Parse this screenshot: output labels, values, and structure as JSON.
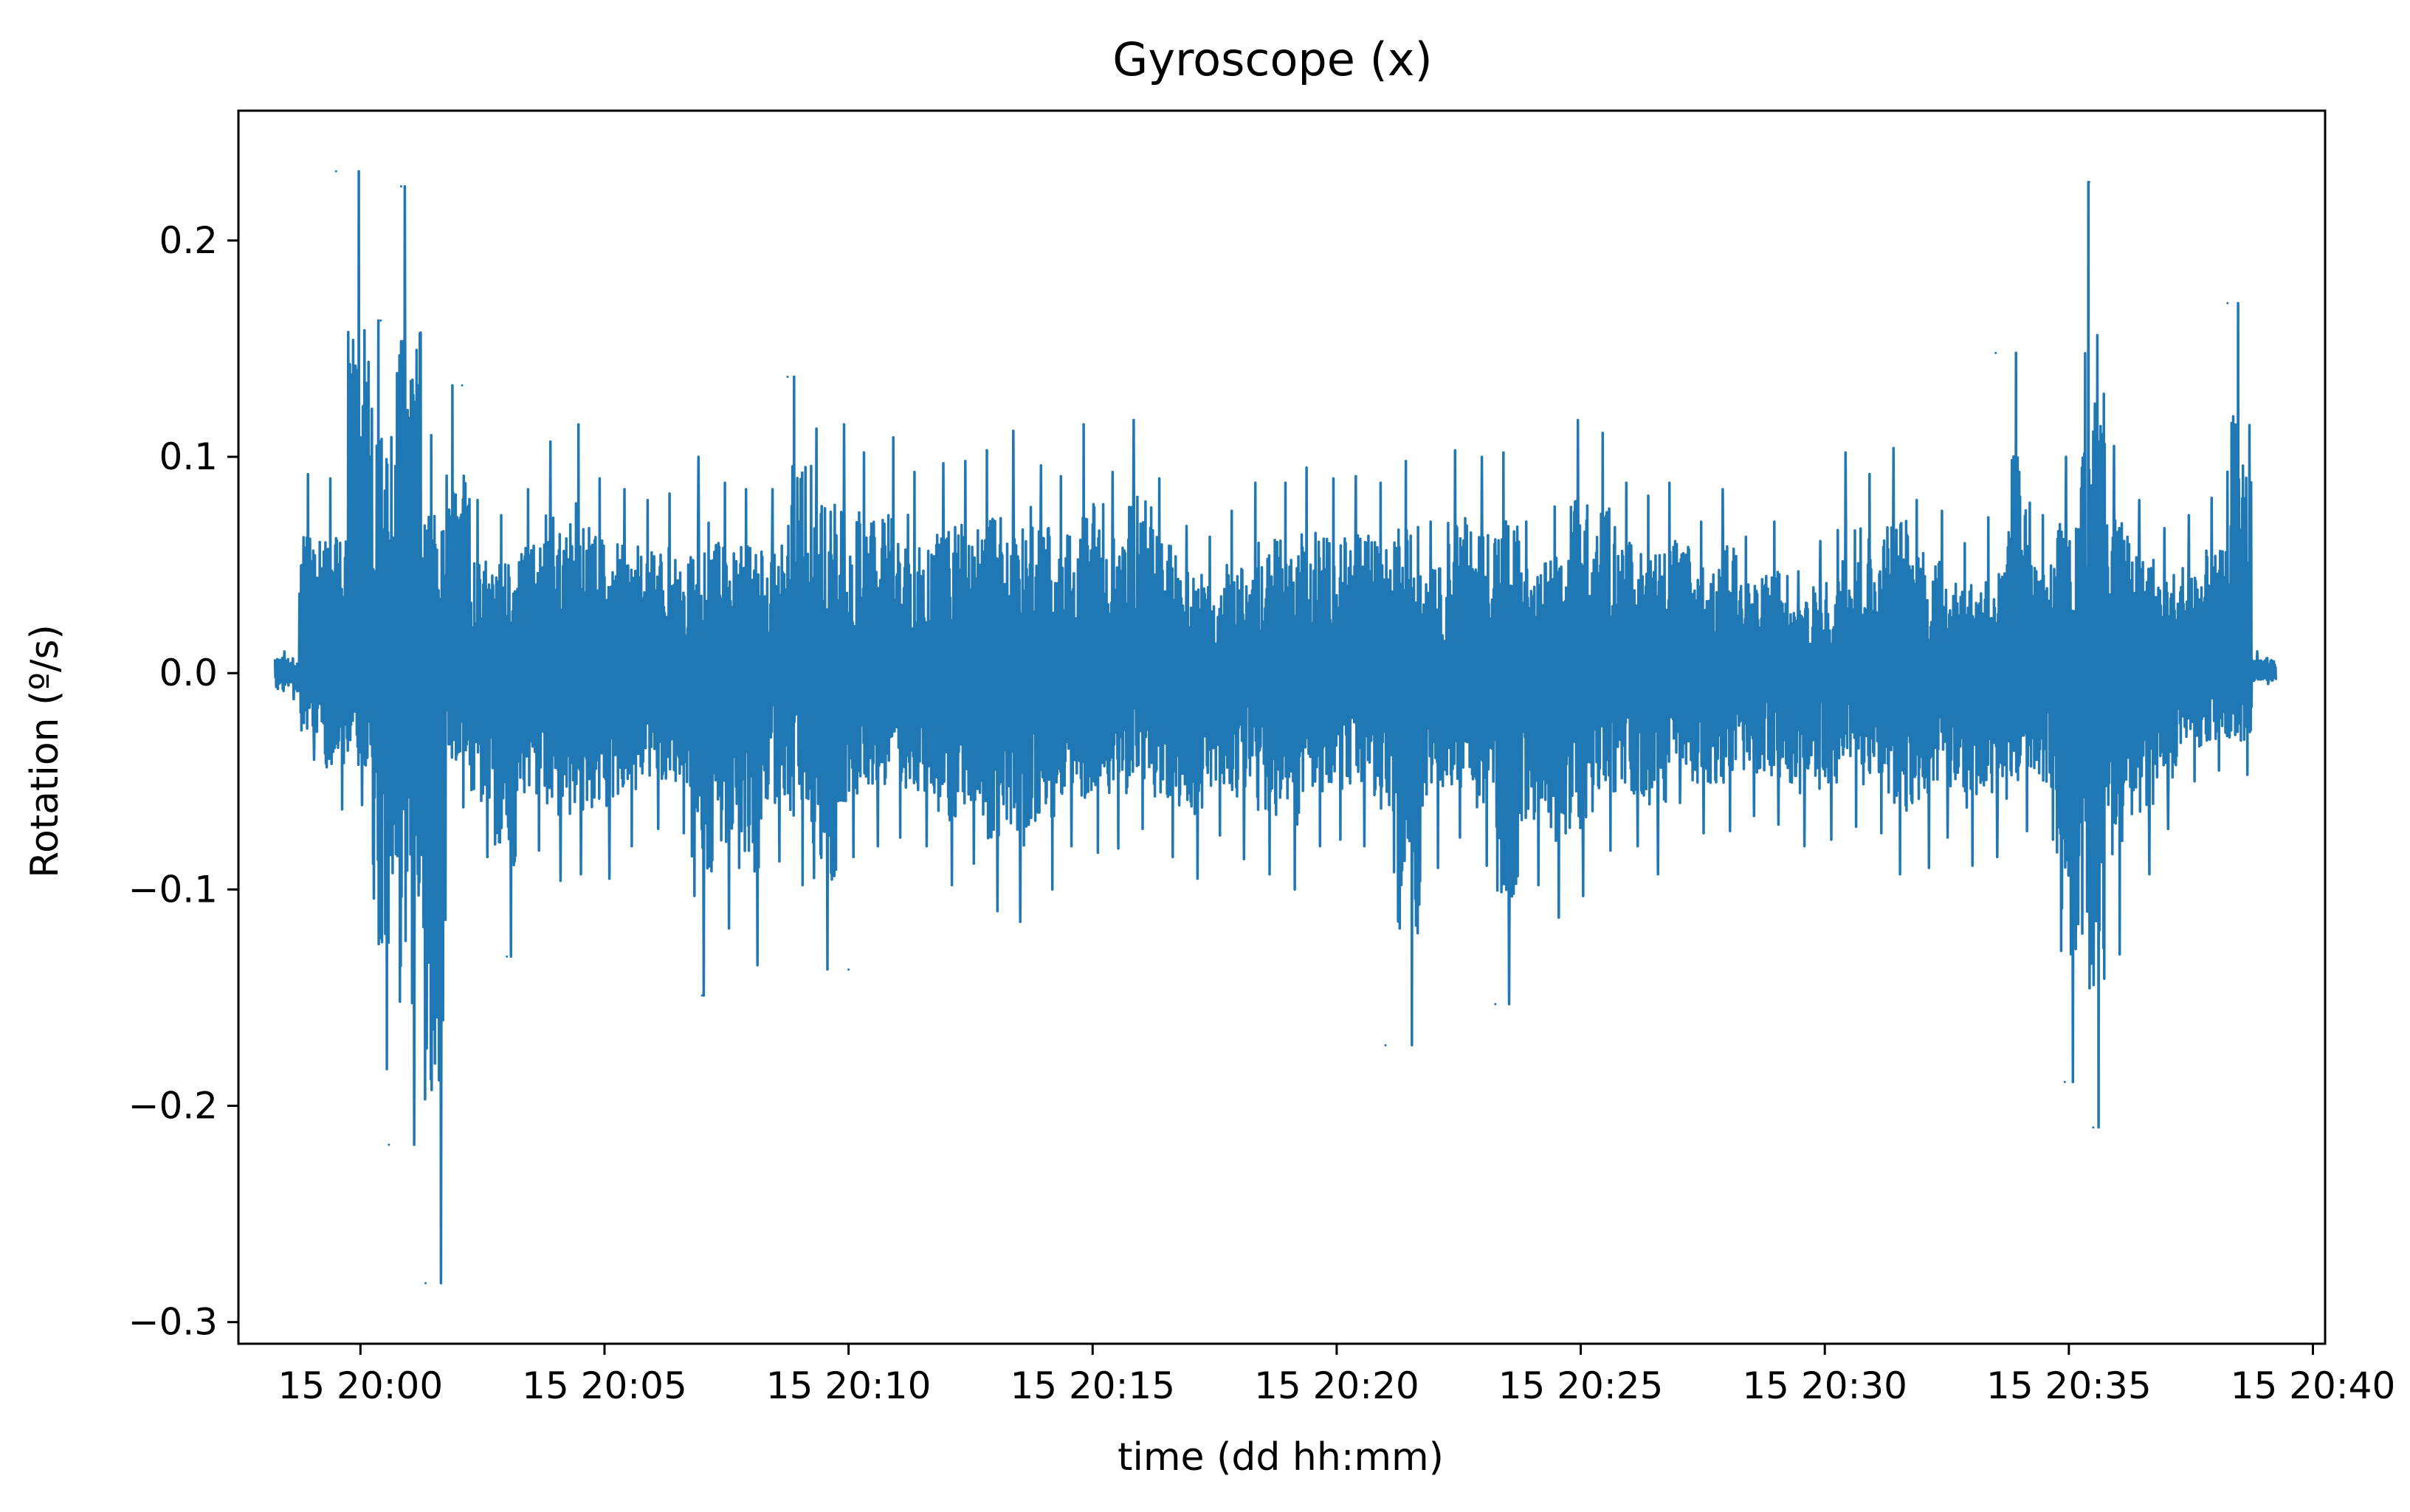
{
  "chart_data": {
    "type": "line",
    "title": "Gyroscope (x)",
    "xlabel": "time (dd hh:mm)",
    "ylabel": "Rotation (º/s)",
    "x_unit": "minutes of day 15",
    "x_range": [
      "15 19:58:15",
      "15 20:38:45"
    ],
    "xlim": [
      "15 19:57:30",
      "15 20:40:15"
    ],
    "ylim": [
      -0.31,
      0.26
    ],
    "x_ticks": [
      {
        "value": "15 20:00",
        "label": "15 20:00"
      },
      {
        "value": "15 20:05",
        "label": "15 20:05"
      },
      {
        "value": "15 20:10",
        "label": "15 20:10"
      },
      {
        "value": "15 20:15",
        "label": "15 20:15"
      },
      {
        "value": "15 20:20",
        "label": "15 20:20"
      },
      {
        "value": "15 20:25",
        "label": "15 20:25"
      },
      {
        "value": "15 20:30",
        "label": "15 20:30"
      },
      {
        "value": "15 20:35",
        "label": "15 20:35"
      },
      {
        "value": "15 20:40",
        "label": "15 20:40"
      }
    ],
    "y_ticks": [
      {
        "value": 0.2,
        "label": "0.2"
      },
      {
        "value": 0.1,
        "label": "0.1"
      },
      {
        "value": 0.0,
        "label": "0.0"
      },
      {
        "value": -0.1,
        "label": "−0.1"
      },
      {
        "value": -0.2,
        "label": "−0.2"
      },
      {
        "value": -0.3,
        "label": "−0.3"
      }
    ],
    "grid": false,
    "legend": false,
    "line_color": "#1f77b4",
    "notable_points": [
      {
        "x": "15 19:59:30",
        "y": 0.232
      },
      {
        "x": "15 20:00:25",
        "y": 0.163
      },
      {
        "x": "15 20:00:35",
        "y": -0.218
      },
      {
        "x": "15 20:00:50",
        "y": 0.225
      },
      {
        "x": "15 20:01:20",
        "y": -0.282
      },
      {
        "x": "15 20:02:05",
        "y": 0.133
      },
      {
        "x": "15 20:03:00",
        "y": -0.131
      },
      {
        "x": "15 20:07:00",
        "y": -0.149
      },
      {
        "x": "15 20:08:45",
        "y": 0.137
      },
      {
        "x": "15 20:10:00",
        "y": -0.137
      },
      {
        "x": "15 20:21:00",
        "y": -0.172
      },
      {
        "x": "15 20:23:15",
        "y": -0.153
      },
      {
        "x": "15 20:33:30",
        "y": 0.148
      },
      {
        "x": "15 20:34:55",
        "y": -0.189
      },
      {
        "x": "15 20:35:25",
        "y": 0.227
      },
      {
        "x": "15 20:35:30",
        "y": -0.21
      },
      {
        "x": "15 20:38:15",
        "y": 0.171
      }
    ],
    "series": [
      {
        "x": [
          "15 19:58:15",
          "15 19:58:45",
          "15 19:59:15",
          "15 19:59:45",
          "15 20:00:15",
          "15 20:00:45",
          "15 20:01:15",
          "15 20:01:45",
          "15 20:02:15",
          "15 20:02:45",
          "15 20:03:15",
          "15 20:03:45",
          "15 20:04:15",
          "15 20:04:45",
          "15 20:05:15",
          "15 20:05:45",
          "15 20:06:15",
          "15 20:06:45",
          "15 20:07:15",
          "15 20:07:45",
          "15 20:08:15",
          "15 20:08:45",
          "15 20:09:15",
          "15 20:09:45",
          "15 20:10:15",
          "15 20:10:45",
          "15 20:11:15",
          "15 20:11:45",
          "15 20:12:15",
          "15 20:12:45",
          "15 20:13:15",
          "15 20:13:45",
          "15 20:14:15",
          "15 20:14:45",
          "15 20:15:15",
          "15 20:15:45",
          "15 20:16:15",
          "15 20:16:45",
          "15 20:17:15",
          "15 20:17:45",
          "15 20:18:15",
          "15 20:18:45",
          "15 20:19:15",
          "15 20:19:45",
          "15 20:20:15",
          "15 20:20:45",
          "15 20:21:15",
          "15 20:21:45",
          "15 20:22:15",
          "15 20:22:45",
          "15 20:23:15",
          "15 20:23:45",
          "15 20:24:15",
          "15 20:24:45",
          "15 20:25:15",
          "15 20:25:45",
          "15 20:26:15",
          "15 20:26:45",
          "15 20:27:15",
          "15 20:27:45",
          "15 20:28:15",
          "15 20:28:45",
          "15 20:29:15",
          "15 20:29:45",
          "15 20:30:15",
          "15 20:30:45",
          "15 20:31:15",
          "15 20:31:45",
          "15 20:32:15",
          "15 20:32:45",
          "15 20:33:15",
          "15 20:33:45",
          "15 20:34:15",
          "15 20:34:45",
          "15 20:35:15",
          "15 20:35:45",
          "15 20:36:15",
          "15 20:36:45",
          "15 20:37:15",
          "15 20:37:45",
          "15 20:38:15",
          "15 20:38:45"
        ],
        "y_max": [
          0.01,
          0.092,
          0.09,
          0.232,
          0.163,
          0.225,
          0.11,
          0.133,
          0.08,
          0.073,
          0.085,
          0.107,
          0.115,
          0.09,
          0.085,
          0.08,
          0.083,
          0.1,
          0.088,
          0.085,
          0.085,
          0.137,
          0.113,
          0.115,
          0.102,
          0.109,
          0.093,
          0.097,
          0.098,
          0.103,
          0.112,
          0.096,
          0.091,
          0.115,
          0.093,
          0.117,
          0.09,
          0.068,
          0.063,
          0.075,
          0.088,
          0.088,
          0.095,
          0.09,
          0.091,
          0.088,
          0.098,
          0.07,
          0.103,
          0.1,
          0.102,
          0.07,
          0.077,
          0.117,
          0.111,
          0.088,
          0.082,
          0.088,
          0.07,
          0.085,
          0.063,
          0.07,
          0.047,
          0.061,
          0.102,
          0.092,
          0.104,
          0.08,
          0.075,
          0.06,
          0.072,
          0.148,
          0.073,
          0.1,
          0.227,
          0.105,
          0.08,
          0.067,
          0.073,
          0.081,
          0.171,
          0.01
        ],
        "y_min": [
          -0.012,
          -0.04,
          -0.063,
          -0.061,
          -0.183,
          -0.218,
          -0.282,
          -0.062,
          -0.085,
          -0.131,
          -0.082,
          -0.096,
          -0.093,
          -0.095,
          -0.08,
          -0.072,
          -0.074,
          -0.149,
          -0.118,
          -0.135,
          -0.087,
          -0.098,
          -0.137,
          -0.085,
          -0.08,
          -0.076,
          -0.08,
          -0.098,
          -0.088,
          -0.11,
          -0.115,
          -0.1,
          -0.08,
          -0.083,
          -0.081,
          -0.072,
          -0.085,
          -0.095,
          -0.075,
          -0.086,
          -0.093,
          -0.1,
          -0.08,
          -0.077,
          -0.08,
          -0.092,
          -0.172,
          -0.09,
          -0.076,
          -0.089,
          -0.153,
          -0.098,
          -0.113,
          -0.103,
          -0.082,
          -0.08,
          -0.093,
          -0.06,
          -0.074,
          -0.073,
          -0.066,
          -0.07,
          -0.08,
          -0.077,
          -0.071,
          -0.074,
          -0.093,
          -0.09,
          -0.076,
          -0.089,
          -0.085,
          -0.073,
          -0.077,
          -0.189,
          -0.21,
          -0.13,
          -0.093,
          -0.072,
          -0.05,
          -0.045,
          -0.047,
          -0.005
        ]
      }
    ]
  }
}
